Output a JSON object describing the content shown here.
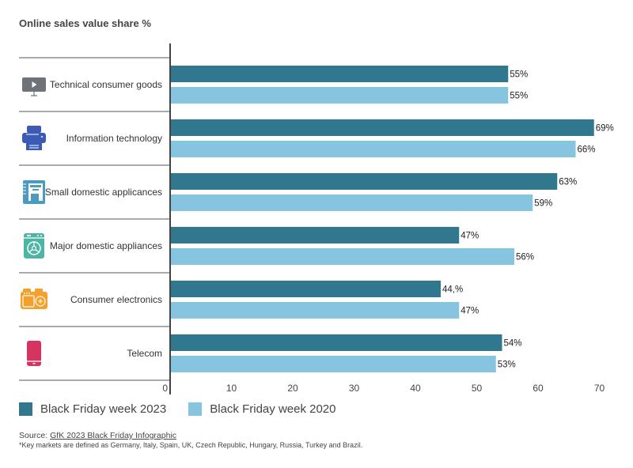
{
  "chart_data": {
    "type": "bar",
    "orientation": "horizontal",
    "title": "Online sales value share %",
    "categories": [
      "Technical consumer goods",
      "Information technology",
      "Small domestic applicances",
      "Major domestic appliances",
      "Consumer electronics",
      "Telecom"
    ],
    "category_icons": [
      "monitor-icon",
      "printer-icon",
      "coffee-machine-icon",
      "washing-machine-icon",
      "camera-icon",
      "smartphone-icon"
    ],
    "category_icon_colors": [
      "#6d7378",
      "#3b5bb5",
      "#4a9bbf",
      "#4cb5a5",
      "#f5a02a",
      "#d4345f"
    ],
    "series": [
      {
        "name": "Black Friday week 2023",
        "color": "#31788f",
        "values": [
          55,
          69,
          63,
          47,
          44,
          54
        ],
        "labels": [
          "55%",
          "69%",
          "63%",
          "47%",
          "44,%",
          "54%"
        ]
      },
      {
        "name": "Black Friday week 2020",
        "color": "#87c4df",
        "values": [
          55,
          66,
          59,
          56,
          47,
          53
        ],
        "labels": [
          "55%",
          "66%",
          "59%",
          "56%",
          "47%",
          "53%"
        ]
      }
    ],
    "xlim": [
      0,
      70
    ],
    "xticks": [
      0,
      10,
      20,
      30,
      40,
      50,
      60,
      70
    ],
    "xlabel": "",
    "ylabel": "",
    "grid": false,
    "legend_position": "bottom-left"
  },
  "source": {
    "prefix": "Source: ",
    "link_text": "GfK 2023 Black Friday Infographic"
  },
  "note": "*Key markets are defined as Germany, Italy, Spain, UK, Czech Republic, Hungary, Russia, Turkey and Brazil."
}
